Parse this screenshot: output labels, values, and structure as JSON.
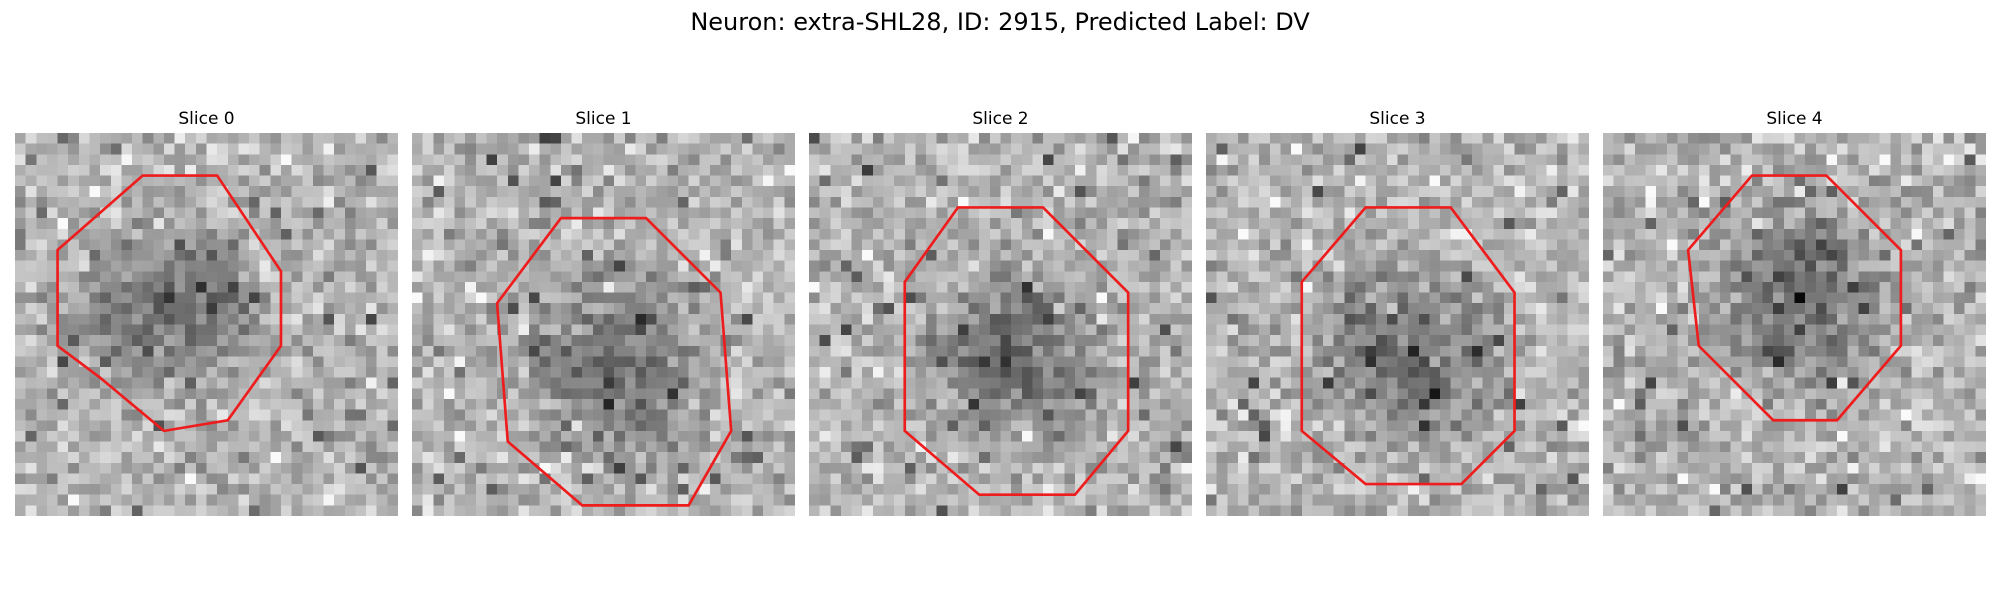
{
  "figure": {
    "suptitle": "Neuron: extra-SHL28, ID: 2915, Predicted Label: DV",
    "outline_color": "#ee1c1c"
  },
  "panels": [
    {
      "title": "Slice 0",
      "seed": 11,
      "outline": [
        [
          12,
          4
        ],
        [
          19,
          4
        ],
        [
          25,
          13
        ],
        [
          25,
          20
        ],
        [
          20,
          27
        ],
        [
          14,
          28
        ],
        [
          8,
          23
        ],
        [
          4,
          20
        ],
        [
          4,
          11
        ]
      ]
    },
    {
      "title": "Slice 1",
      "seed": 23,
      "outline": [
        [
          14,
          8
        ],
        [
          22,
          8
        ],
        [
          29,
          15
        ],
        [
          30,
          28
        ],
        [
          26,
          35
        ],
        [
          16,
          35
        ],
        [
          9,
          29
        ],
        [
          8,
          16
        ]
      ]
    },
    {
      "title": "Slice 2",
      "seed": 37,
      "outline": [
        [
          14,
          7
        ],
        [
          22,
          7
        ],
        [
          30,
          15
        ],
        [
          30,
          28
        ],
        [
          25,
          34
        ],
        [
          16,
          34
        ],
        [
          9,
          28
        ],
        [
          9,
          14
        ]
      ]
    },
    {
      "title": "Slice 3",
      "seed": 51,
      "outline": [
        [
          15,
          7
        ],
        [
          23,
          7
        ],
        [
          29,
          15
        ],
        [
          29,
          28
        ],
        [
          24,
          33
        ],
        [
          15,
          33
        ],
        [
          9,
          28
        ],
        [
          9,
          14
        ]
      ]
    },
    {
      "title": "Slice 4",
      "seed": 67,
      "outline": [
        [
          14,
          4
        ],
        [
          21,
          4
        ],
        [
          28,
          11
        ],
        [
          28,
          20
        ],
        [
          22,
          27
        ],
        [
          16,
          27
        ],
        [
          9,
          20
        ],
        [
          8,
          11
        ]
      ]
    }
  ]
}
